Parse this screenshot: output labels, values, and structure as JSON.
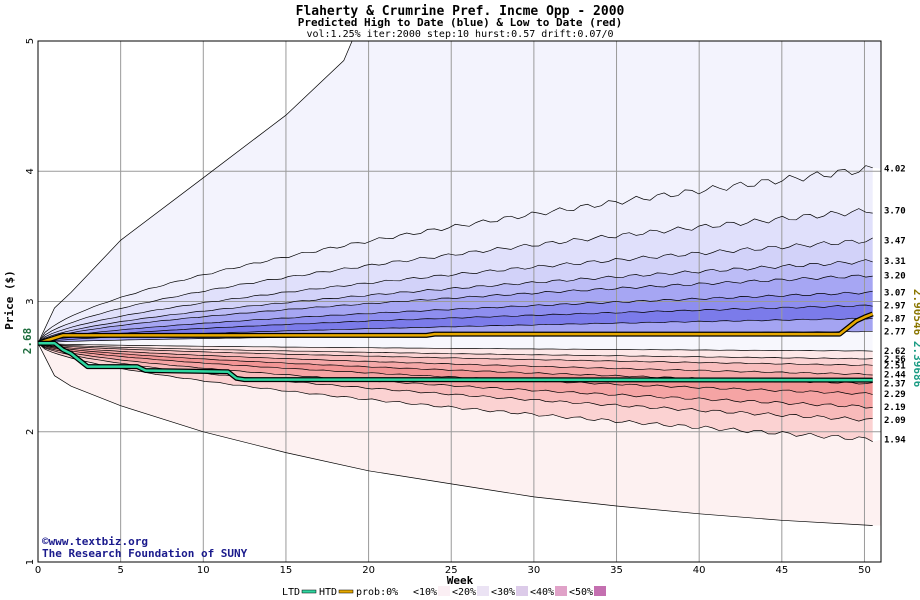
{
  "chart_data": {
    "type": "area",
    "title": "Flaherty & Crumrine Pref. Incme Opp - 2000",
    "subtitle": "Predicted High to Date (blue) &  Low to Date (red)",
    "params": "vol:1.25% iter:2000 step:10 hurst:0.57 drift:0.07/0",
    "xlabel": "Week",
    "ylabel": "Price ($)",
    "xlim": [
      0,
      51
    ],
    "ylim": [
      1,
      5
    ],
    "x_ticks": [
      0,
      5,
      10,
      15,
      20,
      25,
      30,
      35,
      40,
      45,
      50
    ],
    "y_ticks": [
      1,
      2,
      3,
      4,
      5
    ],
    "grid": true,
    "start_price": 2.68,
    "start_label": "2.68",
    "high_end_value": 2.90546,
    "high_end_label": "2.90546",
    "low_end_value": 2.39686,
    "low_end_label": "2.39686",
    "band_end_labels": [
      "4.02",
      "3.70",
      "3.47",
      "3.31",
      "3.20",
      "3.07",
      "2.97",
      "2.87",
      "2.77",
      "2.62",
      "2.56",
      "2.51",
      "2.44",
      "2.37",
      "2.29",
      "2.19",
      "2.09",
      "1.94"
    ],
    "upper_outer": {
      "x": [
        0,
        1,
        2,
        5,
        10,
        15,
        18.5,
        19
      ],
      "y": [
        2.68,
        2.95,
        3.07,
        3.47,
        3.95,
        4.43,
        4.85,
        5.0
      ]
    },
    "lower_outer": {
      "x": [
        0,
        1,
        2,
        5,
        10,
        15,
        20,
        25,
        30,
        35,
        40,
        45,
        50.5
      ],
      "y": [
        2.68,
        2.43,
        2.35,
        2.2,
        2.0,
        1.84,
        1.7,
        1.6,
        1.5,
        1.43,
        1.37,
        1.32,
        1.28
      ]
    },
    "blue_bands_end": [
      4.02,
      3.7,
      3.47,
      3.31,
      3.2,
      3.07,
      2.97,
      2.87,
      2.77
    ],
    "red_bands_end": [
      2.62,
      2.56,
      2.51,
      2.44,
      2.37,
      2.29,
      2.19,
      2.09,
      1.94
    ],
    "high_to_date": {
      "x": [
        0,
        0.5,
        1,
        1.5,
        23.5,
        24,
        48.5,
        49,
        49.5,
        50,
        50.5
      ],
      "y": [
        2.68,
        2.7,
        2.72,
        2.74,
        2.74,
        2.75,
        2.75,
        2.8,
        2.85,
        2.88,
        2.905
      ]
    },
    "low_to_date": {
      "x": [
        0,
        1,
        1.5,
        2,
        2.5,
        3,
        6,
        6.5,
        11.5,
        12,
        12.5,
        20,
        50.5
      ],
      "y": [
        2.68,
        2.68,
        2.63,
        2.6,
        2.55,
        2.5,
        2.5,
        2.47,
        2.46,
        2.41,
        2.4,
        2.4,
        2.39686
      ]
    },
    "legend": [
      {
        "label": "LTD",
        "color": "#2fd6a0"
      },
      {
        "label": "HTD",
        "color": "#e6a800"
      },
      {
        "label": "prob:0%",
        "color": "#ffffff"
      },
      {
        "label": "<10%",
        "color": "#fbeff4"
      },
      {
        "label": "<20%",
        "color": "#ebe3f4"
      },
      {
        "label": "<30%",
        "color": "#dccbe9"
      },
      {
        "label": "<40%",
        "color": "#e0a2c8"
      },
      {
        "label": "<50%",
        "color": "#c46fb0"
      }
    ],
    "colors": {
      "blue_fills": [
        "#eeeefc",
        "#e0e0fb",
        "#d2d2f9",
        "#bcbcf6",
        "#a6a6f3",
        "#8e8eef",
        "#7b7bea",
        "#a4a4f2",
        "#c8c8f6"
      ],
      "red_fills": [
        "#fde7e7",
        "#fbd3d3",
        "#f8bdbd",
        "#f5a8a8",
        "#f29595",
        "#f5a4a4",
        "#f8baba",
        "#fbd2d2",
        "#fde9e9"
      ],
      "upper_outer_fill": "#f3f3fd",
      "lower_outer_fill": "#fdf1f1",
      "high_line": "#e6a800",
      "low_line": "#2fd6a0",
      "high_label": "#8a7600",
      "low_label": "#1c9c84"
    }
  },
  "credits": {
    "url": "©www.textbiz.org",
    "org": "The Research Foundation of SUNY"
  }
}
